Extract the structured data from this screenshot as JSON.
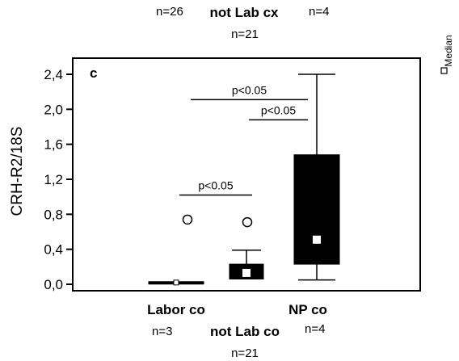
{
  "header": {
    "left_n": "n=26",
    "title": "not Lab cx",
    "right_n": "n=4",
    "sub_n": "n=21"
  },
  "legend": {
    "label": "Median",
    "placement": "right"
  },
  "footer": {
    "left_n": "n=3",
    "title": "not Lab co",
    "right_n": "n=4",
    "sub_n": "n=21"
  },
  "chart_data": {
    "type": "box",
    "panel_label": "c",
    "ylabel": "CRH-R2/18S",
    "ylim": [
      0,
      2.55
    ],
    "yticks": [
      0.0,
      0.4,
      0.8,
      1.2,
      1.6,
      2.0,
      2.4
    ],
    "ytick_labels": [
      "0,0",
      "0,4",
      "0,8",
      "1,2",
      "1,6",
      "2,0",
      "2,4"
    ],
    "x_labels": [
      "Labor co",
      "NP co"
    ],
    "groups": [
      {
        "name": "Labor co",
        "q1": 0.01,
        "q3": 0.03,
        "median": 0.02,
        "whisker_low": 0.01,
        "whisker_high": 0.03,
        "outliers": [
          0.74
        ]
      },
      {
        "name": "not Lab co",
        "q1": 0.06,
        "q3": 0.23,
        "median": 0.13,
        "whisker_low": 0.06,
        "whisker_high": 0.39,
        "outliers": [
          0.71
        ]
      },
      {
        "name": "NP co",
        "q1": 0.23,
        "q3": 1.48,
        "median": 0.51,
        "whisker_low": 0.05,
        "whisker_high": 2.4,
        "outliers": []
      }
    ],
    "significance": [
      {
        "label": "p<0.05",
        "y": 1.02,
        "from": 0,
        "to": 1
      },
      {
        "label": "p<0.05",
        "y": 2.11,
        "from": 0,
        "to": 2
      },
      {
        "label": "p<0.05",
        "y": 1.88,
        "from": 1,
        "to": 2
      }
    ]
  }
}
